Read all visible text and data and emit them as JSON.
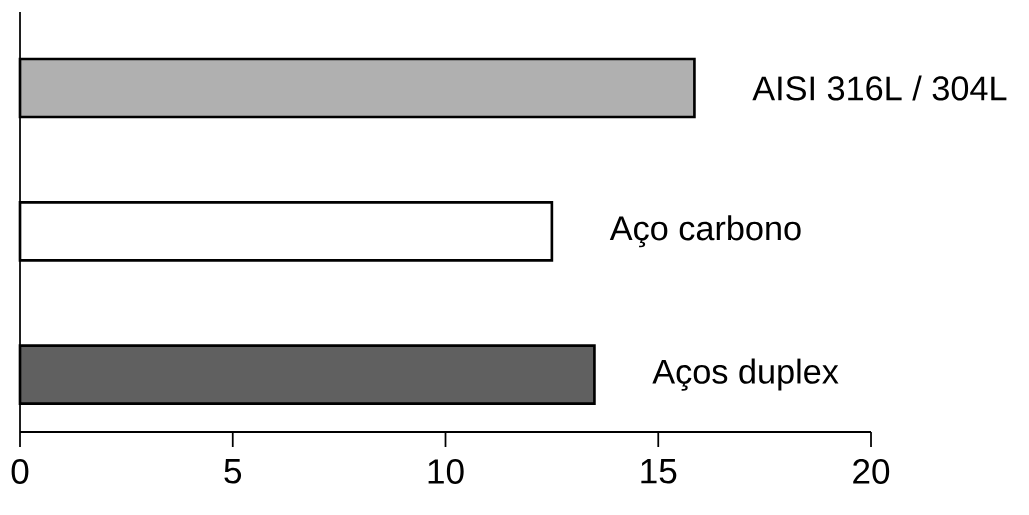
{
  "chart_data": {
    "type": "bar",
    "orientation": "horizontal",
    "categories": [
      "AISI 316L / 304L",
      "Aço carbono",
      "Aços duplex"
    ],
    "values": [
      15.85,
      12.5,
      13.5
    ],
    "colors": [
      "#b0b0b0",
      "#ffffff",
      "#606060"
    ],
    "xlim": [
      0,
      20
    ],
    "xticks": [
      0,
      5,
      10,
      15,
      20
    ]
  }
}
